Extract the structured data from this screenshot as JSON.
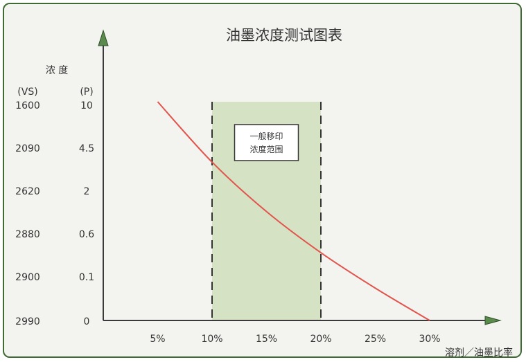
{
  "chart_data": {
    "type": "line",
    "title": "油墨浓度测试图表",
    "y_title": "浓 度",
    "y_unit_vs": "(VS)",
    "y_unit_p": "(P)",
    "y_ticks_vs": [
      "1600",
      "2090",
      "2620",
      "2880",
      "2900",
      "2990"
    ],
    "y_ticks_p": [
      "10",
      "4.5",
      "2",
      "0.6",
      "0.1",
      "0"
    ],
    "x_ticks": [
      "5%",
      "10%",
      "15%",
      "20%",
      "25%",
      "30%"
    ],
    "x_values": [
      5,
      10,
      15,
      20,
      25,
      30
    ],
    "xlabel": "溶剂／油墨比率",
    "xlim": [
      0,
      31
    ],
    "ylim_level": [
      0,
      5
    ],
    "band": {
      "x_start": 10,
      "x_end": 20,
      "label_line1": "一般移印",
      "label_line2": "浓度范围",
      "color": "#d5e2c4"
    },
    "series": [
      {
        "color": "#e2544c",
        "points": [
          [
            5,
            5.0
          ],
          [
            10,
            3.62
          ],
          [
            15,
            2.49
          ],
          [
            20,
            1.55
          ],
          [
            25,
            0.74
          ],
          [
            30,
            0.0
          ]
        ]
      }
    ],
    "axis_color": "#3a3a3a",
    "arrow_color": "#5a8a4c",
    "grid": false
  }
}
